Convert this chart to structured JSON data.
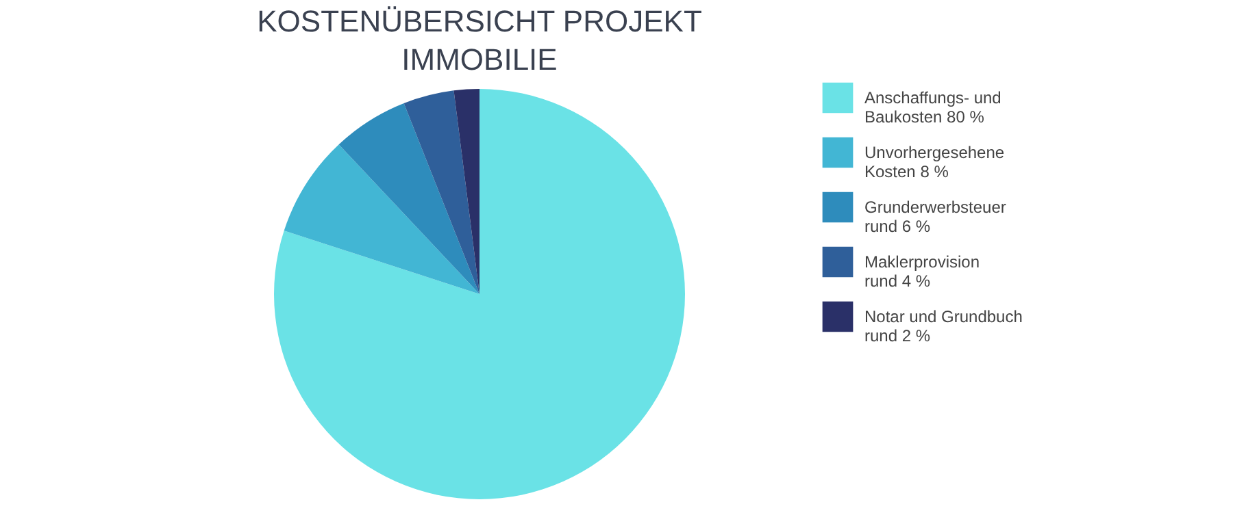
{
  "chart_data": {
    "type": "pie",
    "title": "KOSTENÜBERSICHT PROJEKT\nIMMOBILIE",
    "categories": [
      "Anschaffungs- und\nBaukosten 80 %",
      "Unvorhergesehene\nKosten 8 %",
      "Grunderwerbsteuer\nrund 6 %",
      "Maklerprovision\nrund 4 %",
      "Notar und Grundbuch\nrund 2 %"
    ],
    "values": [
      80,
      8,
      6,
      4,
      2
    ],
    "colors": [
      "#6ae2e6",
      "#42b6d4",
      "#2e8cbc",
      "#2f5f9a",
      "#2a3068"
    ],
    "legend": "right"
  }
}
